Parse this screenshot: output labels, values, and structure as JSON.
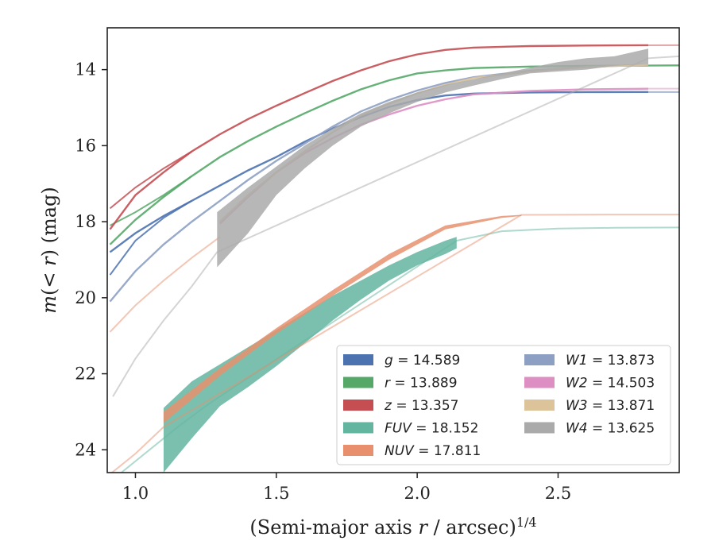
{
  "chart_data": {
    "type": "line",
    "xlabel": "(Semi-major axis r / arcsec)^1/4",
    "ylabel": "m(< r) (mag)",
    "xlim": [
      0.9,
      2.93
    ],
    "ylim": [
      24.6,
      12.9
    ],
    "y_inverted": true,
    "x_ticks": [
      1.0,
      1.5,
      2.0,
      2.5
    ],
    "x_tick_labels": [
      "1.0",
      "1.5",
      "2.0",
      "2.5"
    ],
    "y_ticks": [
      14,
      16,
      18,
      20,
      22,
      24
    ],
    "y_tick_labels": [
      "14",
      "16",
      "18",
      "20",
      "22",
      "24"
    ],
    "legend_position": "lower-right",
    "series": [
      {
        "key": "g",
        "color": "#4c72b0",
        "legend_label": "g = 14.589",
        "line": [
          [
            0.91,
            18.8
          ],
          [
            1.0,
            18.3
          ],
          [
            1.1,
            17.85
          ],
          [
            1.2,
            17.45
          ],
          [
            1.3,
            17.05
          ],
          [
            1.4,
            16.65
          ],
          [
            1.5,
            16.3
          ],
          [
            1.6,
            15.9
          ],
          [
            1.7,
            15.55
          ],
          [
            1.8,
            15.25
          ],
          [
            1.9,
            14.98
          ],
          [
            2.0,
            14.8
          ],
          [
            2.1,
            14.68
          ],
          [
            2.2,
            14.63
          ],
          [
            2.4,
            14.6
          ],
          [
            2.6,
            14.59
          ],
          [
            2.82,
            14.589
          ]
        ],
        "line_faint": [
          [
            2.82,
            14.59
          ],
          [
            2.93,
            14.59
          ]
        ],
        "line_inner": [
          [
            0.91,
            19.4
          ],
          [
            1.0,
            18.5
          ],
          [
            1.1,
            17.9
          ],
          [
            1.2,
            17.45
          ]
        ]
      },
      {
        "key": "r",
        "color": "#55a868",
        "legend_label": "r = 13.889",
        "line": [
          [
            0.91,
            18.6
          ],
          [
            1.0,
            17.95
          ],
          [
            1.1,
            17.35
          ],
          [
            1.2,
            16.8
          ],
          [
            1.3,
            16.3
          ],
          [
            1.4,
            15.88
          ],
          [
            1.5,
            15.5
          ],
          [
            1.6,
            15.15
          ],
          [
            1.7,
            14.82
          ],
          [
            1.8,
            14.52
          ],
          [
            1.9,
            14.28
          ],
          [
            2.0,
            14.1
          ],
          [
            2.1,
            14.02
          ],
          [
            2.2,
            13.96
          ],
          [
            2.4,
            13.92
          ],
          [
            2.6,
            13.9
          ],
          [
            2.93,
            13.889
          ]
        ],
        "line_inner": [
          [
            0.91,
            18.1
          ],
          [
            1.0,
            17.75
          ],
          [
            1.1,
            17.3
          ],
          [
            1.2,
            16.8
          ]
        ]
      },
      {
        "key": "z",
        "color": "#c44e52",
        "legend_label": "z = 13.357",
        "line": [
          [
            0.91,
            18.2
          ],
          [
            1.0,
            17.3
          ],
          [
            1.1,
            16.7
          ],
          [
            1.2,
            16.15
          ],
          [
            1.3,
            15.7
          ],
          [
            1.4,
            15.3
          ],
          [
            1.5,
            14.95
          ],
          [
            1.6,
            14.62
          ],
          [
            1.7,
            14.3
          ],
          [
            1.8,
            14.02
          ],
          [
            1.9,
            13.78
          ],
          [
            2.0,
            13.6
          ],
          [
            2.1,
            13.48
          ],
          [
            2.2,
            13.42
          ],
          [
            2.4,
            13.38
          ],
          [
            2.6,
            13.365
          ],
          [
            2.82,
            13.357
          ]
        ],
        "line_faint": [
          [
            2.82,
            13.36
          ],
          [
            2.93,
            13.357
          ]
        ],
        "line_inner": [
          [
            0.91,
            17.65
          ],
          [
            1.0,
            17.1
          ],
          [
            1.1,
            16.6
          ],
          [
            1.2,
            16.15
          ]
        ]
      },
      {
        "key": "FUV",
        "color": "#64b5a0",
        "legend_label": "FUV = 18.152",
        "band_x": [
          1.1,
          1.2,
          1.3,
          1.4,
          1.5,
          1.6,
          1.7,
          1.8,
          1.9,
          2.0,
          2.1,
          2.14
        ],
        "band_low": [
          22.9,
          22.2,
          21.75,
          21.3,
          20.85,
          20.4,
          19.95,
          19.55,
          19.15,
          18.8,
          18.5,
          18.4
        ],
        "band_high": [
          24.6,
          23.7,
          22.85,
          22.35,
          21.8,
          21.2,
          20.6,
          20.05,
          19.55,
          19.15,
          18.85,
          18.7
        ],
        "line_faint": [
          [
            0.95,
            24.6
          ],
          [
            1.05,
            24.0
          ],
          [
            1.15,
            23.4
          ],
          [
            1.25,
            22.85
          ],
          [
            1.35,
            22.35
          ],
          [
            2.14,
            18.5
          ],
          [
            2.3,
            18.25
          ],
          [
            2.5,
            18.18
          ],
          [
            2.7,
            18.16
          ],
          [
            2.93,
            18.152
          ]
        ]
      },
      {
        "key": "NUV",
        "color": "#e8906e",
        "legend_label": "NUV = 17.811",
        "band_x": [
          1.1,
          1.3,
          1.5,
          1.7,
          1.9,
          2.1,
          2.3,
          2.37
        ],
        "band_low": [
          23.0,
          21.85,
          20.8,
          19.8,
          18.85,
          18.1,
          17.85,
          17.82
        ],
        "band_high": [
          23.3,
          22.05,
          20.95,
          19.95,
          19.0,
          18.2,
          17.9,
          17.85
        ],
        "line_faint": [
          [
            0.9,
            24.7
          ],
          [
            1.0,
            24.1
          ],
          [
            1.1,
            23.4
          ],
          [
            2.37,
            17.82
          ],
          [
            2.6,
            17.815
          ],
          [
            2.93,
            17.811
          ]
        ],
        "line_upper_faint": [
          [
            0.91,
            20.9
          ],
          [
            1.0,
            20.2
          ],
          [
            1.1,
            19.55
          ],
          [
            1.2,
            18.95
          ],
          [
            1.3,
            18.4
          ]
        ]
      },
      {
        "key": "W1",
        "color": "#8da0c4",
        "legend_label": "W1 = 13.873",
        "line": [
          [
            0.91,
            20.1
          ],
          [
            1.0,
            19.3
          ],
          [
            1.1,
            18.6
          ],
          [
            1.2,
            18.0
          ],
          [
            1.3,
            17.45
          ],
          [
            1.4,
            16.9
          ],
          [
            1.5,
            16.4
          ],
          [
            1.6,
            15.95
          ],
          [
            1.7,
            15.5
          ],
          [
            1.8,
            15.1
          ],
          [
            1.9,
            14.8
          ],
          [
            2.0,
            14.55
          ],
          [
            2.1,
            14.35
          ],
          [
            2.2,
            14.2
          ],
          [
            2.4,
            14.03
          ],
          [
            2.6,
            13.93
          ],
          [
            2.82,
            13.873
          ]
        ]
      },
      {
        "key": "W2",
        "color": "#dd8ec2",
        "legend_label": "W2 = 14.503",
        "line": [
          [
            1.3,
            18.05
          ],
          [
            1.4,
            17.35
          ],
          [
            1.5,
            16.7
          ],
          [
            1.6,
            16.2
          ],
          [
            1.7,
            15.8
          ],
          [
            1.8,
            15.45
          ],
          [
            1.9,
            15.18
          ],
          [
            2.0,
            14.95
          ],
          [
            2.1,
            14.78
          ],
          [
            2.2,
            14.65
          ],
          [
            2.4,
            14.56
          ],
          [
            2.6,
            14.52
          ],
          [
            2.82,
            14.503
          ]
        ],
        "line_faint": [
          [
            2.82,
            14.5
          ],
          [
            2.93,
            14.5
          ]
        ]
      },
      {
        "key": "W3",
        "color": "#dcc39a",
        "legend_label": "W3 = 13.871",
        "line": [
          [
            1.3,
            18.0
          ],
          [
            1.4,
            17.3
          ],
          [
            1.5,
            16.7
          ],
          [
            1.6,
            16.15
          ],
          [
            1.7,
            15.65
          ],
          [
            1.8,
            15.2
          ],
          [
            1.9,
            14.9
          ],
          [
            2.0,
            14.62
          ],
          [
            2.1,
            14.4
          ],
          [
            2.2,
            14.22
          ],
          [
            2.4,
            14.05
          ],
          [
            2.6,
            13.93
          ],
          [
            2.82,
            13.871
          ]
        ]
      },
      {
        "key": "W4",
        "color": "#aaaaaa",
        "legend_label": "W4 = 13.625",
        "band_x": [
          1.29,
          1.4,
          1.5,
          1.6,
          1.7,
          1.8,
          1.9,
          2.0,
          2.1,
          2.2,
          2.3,
          2.4,
          2.5,
          2.6,
          2.7,
          2.82
        ],
        "band_low": [
          17.75,
          17.1,
          16.55,
          16.0,
          15.55,
          15.15,
          14.85,
          14.6,
          14.4,
          14.25,
          14.1,
          13.95,
          13.8,
          13.7,
          13.65,
          13.45
        ],
        "band_high": [
          19.2,
          18.3,
          17.3,
          16.6,
          16.0,
          15.5,
          15.15,
          14.85,
          14.6,
          14.42,
          14.25,
          14.1,
          14.05,
          14.0,
          13.9,
          13.85
        ],
        "line_faint": [
          [
            0.92,
            22.6
          ],
          [
            1.0,
            21.6
          ],
          [
            1.1,
            20.6
          ],
          [
            1.2,
            19.7
          ],
          [
            1.29,
            18.8
          ],
          [
            2.82,
            13.7
          ],
          [
            2.93,
            13.65
          ]
        ]
      }
    ]
  }
}
